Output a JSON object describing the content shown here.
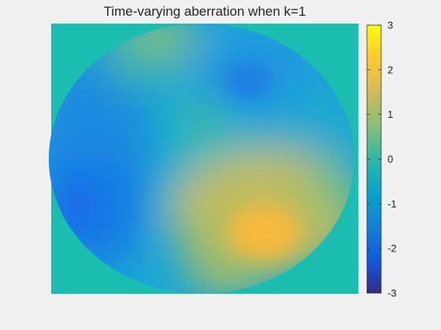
{
  "chart_data": {
    "type": "heatmap",
    "title": "Time-varying aberration when k=1",
    "xlabel": "",
    "ylabel": "",
    "colorbar": {
      "limits": [
        -3,
        3
      ],
      "ticks": [
        3,
        2,
        1,
        0,
        -1,
        -2,
        -3
      ],
      "tick_labels": [
        "3",
        "2",
        "1",
        "0",
        "-1",
        "-2",
        "-3"
      ],
      "colormap": "parula",
      "position": "right"
    },
    "grid": false,
    "aperture": "circular",
    "background_value": 0,
    "field_estimates": [
      {
        "region": "top-center edge",
        "value": 1.3
      },
      {
        "region": "upper-right",
        "value": -0.7
      },
      {
        "region": "left",
        "value": -1.0
      },
      {
        "region": "lower-left",
        "value": -1.1
      },
      {
        "region": "center",
        "value": 0.2
      },
      {
        "region": "lower-right",
        "value": 2.2
      },
      {
        "region": "bottom-center",
        "value": 1.4
      }
    ]
  },
  "colors": {
    "background": "#f0f0f0",
    "plot_background": "#1cbdb1",
    "colormap_stops": [
      "#352a87",
      "#0f5cdd",
      "#1481d6",
      "#06a4ca",
      "#2eb7a4",
      "#87bf77",
      "#d1bb59",
      "#fec832",
      "#f9fb0e"
    ]
  }
}
